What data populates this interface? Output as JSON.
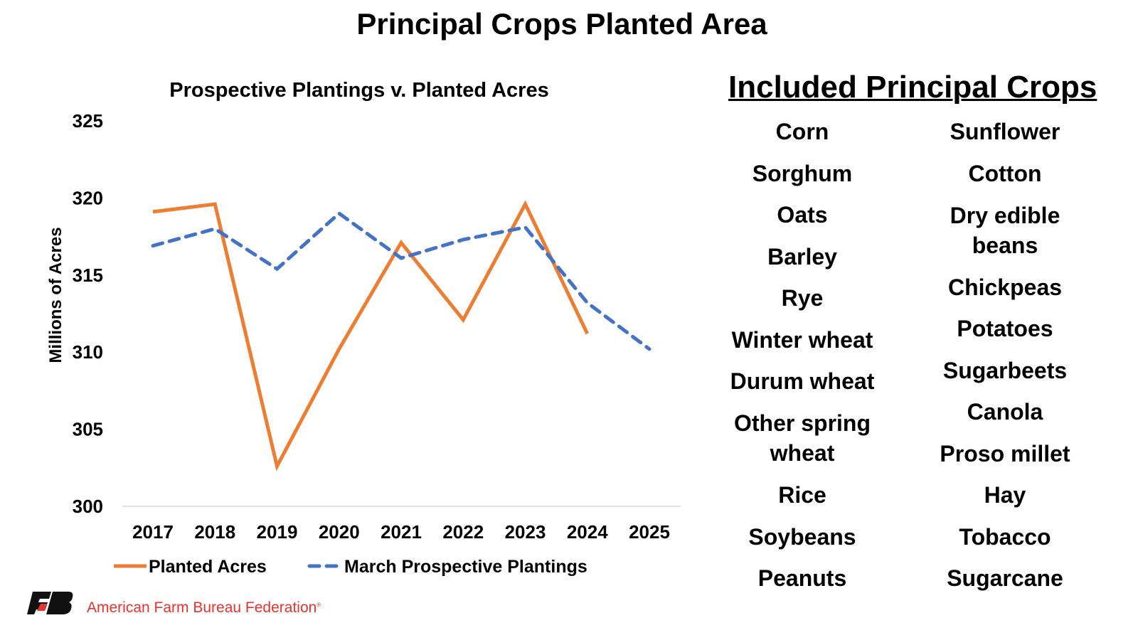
{
  "title": "Principal Crops Planted Area",
  "chart_data": {
    "type": "line",
    "title": "Prospective Plantings v. Planted Acres",
    "xlabel": "",
    "ylabel": "Millions of Acres",
    "ylim": [
      300,
      325
    ],
    "yticks": [
      300,
      305,
      310,
      315,
      320,
      325
    ],
    "categories": [
      "2017",
      "2018",
      "2019",
      "2020",
      "2021",
      "2022",
      "2023",
      "2024",
      "2025"
    ],
    "grid": false,
    "legend_position": "bottom",
    "series": [
      {
        "name": "Planted Acres",
        "color": "#ED7D31",
        "style": "solid",
        "values": [
          319.1,
          319.6,
          302.6,
          310.2,
          317.1,
          312.1,
          319.6,
          311.2,
          null
        ]
      },
      {
        "name": "March Prospective Plantings",
        "color": "#4472C4",
        "style": "dashed",
        "values": [
          316.9,
          318.0,
          315.4,
          319.0,
          316.1,
          317.3,
          318.1,
          313.2,
          310.2
        ]
      }
    ]
  },
  "crops": {
    "heading": "Included Principal Crops",
    "left": [
      "Corn",
      "Sorghum",
      "Oats",
      "Barley",
      "Rye",
      "Winter wheat",
      "Durum wheat",
      "Other spring wheat",
      "Rice",
      "Soybeans",
      "Peanuts"
    ],
    "right": [
      "Sunflower",
      "Cotton",
      "Dry edible beans",
      "Chickpeas",
      "Potatoes",
      "Sugarbeets",
      "Canola",
      "Proso millet",
      "Hay",
      "Tobacco",
      "Sugarcane"
    ]
  },
  "footer": {
    "org": "American Farm Bureau Federation",
    "logo_text": "FB"
  }
}
